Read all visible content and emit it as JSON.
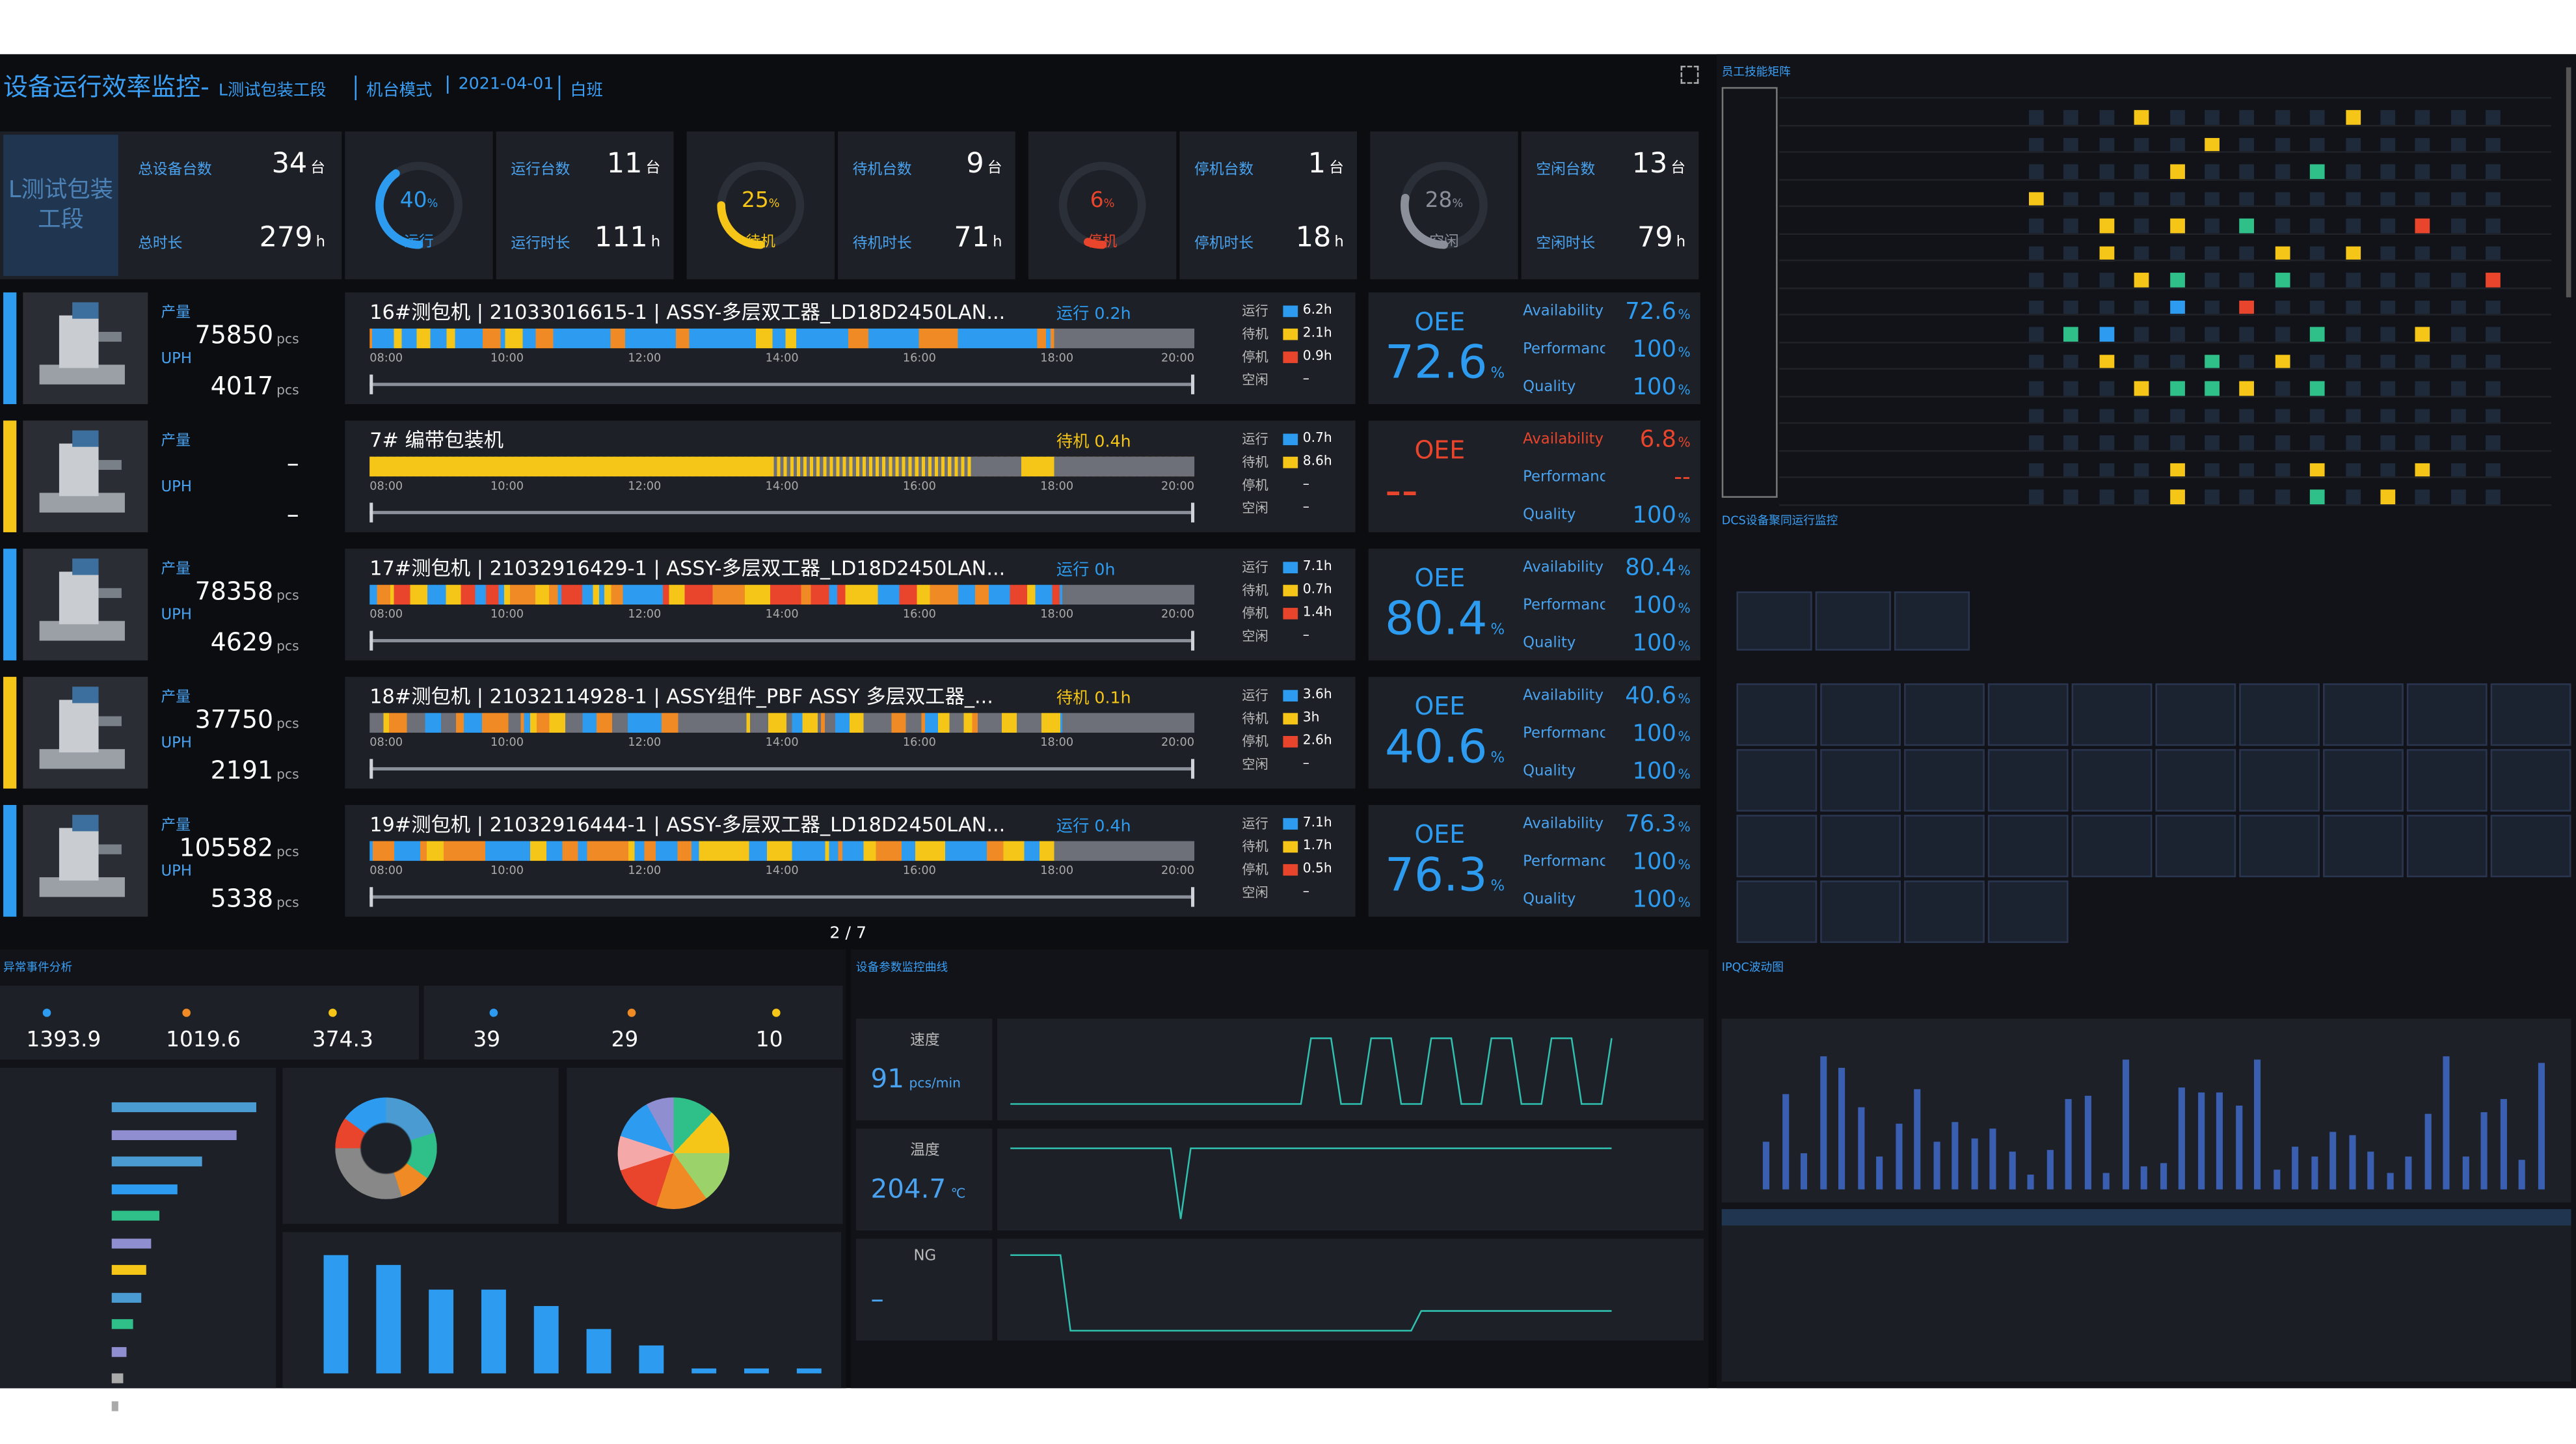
{
  "header": {
    "title": "设备运行效率监控-",
    "line": "L测试包装工段",
    "mode": "机台模式",
    "date": "2021-04-01",
    "shift": "白班"
  },
  "summary": {
    "line_label": "L测试包装工段",
    "total": [
      {
        "label": "总设备台数",
        "value": 34,
        "unit": "台"
      },
      {
        "label": "总时长",
        "value": 279,
        "unit": "h"
      }
    ],
    "percent_unit": "%",
    "states": [
      {
        "percent": 40,
        "name": "运行",
        "color": "#2d9cf0",
        "count_label": "运行台数",
        "count": 11,
        "count_unit": "台",
        "hours_label": "运行时长",
        "hours": 111,
        "hours_unit": "h"
      },
      {
        "percent": 25,
        "name": "待机",
        "color": "#f5c518",
        "count_label": "待机台数",
        "count": 9,
        "count_unit": "台",
        "hours_label": "待机时长",
        "hours": 71,
        "hours_unit": "h"
      },
      {
        "percent": 6,
        "name": "停机",
        "color": "#e8452c",
        "count_label": "停机台数",
        "count": 1,
        "count_unit": "台",
        "hours_label": "停机时长",
        "hours": 18,
        "hours_unit": "h"
      },
      {
        "percent": 28,
        "name": "空闲",
        "color": "#8a8f99",
        "count_label": "空闲台数",
        "count": 13,
        "count_unit": "台",
        "hours_label": "空闲时长",
        "hours": 79,
        "hours_unit": "h"
      }
    ]
  },
  "machines": {
    "labels": {
      "output": "产量",
      "uph": "UPH",
      "unit": "pcs",
      "oee": "OEE",
      "percent": "%",
      "metrics": [
        "Availability",
        "Performanc",
        "Quality"
      ],
      "states": [
        "运行",
        "待机",
        "停机",
        "空闲"
      ],
      "state_colors": [
        "#2d9cf0",
        "#f5c518",
        "#e8452c",
        null
      ]
    },
    "time_axis": [
      "08:00",
      "10:00",
      "12:00",
      "14:00",
      "16:00",
      "18:00",
      "20:00"
    ],
    "rows": [
      {
        "color": "#2d9cf0",
        "oee_color": "#2d9cf0",
        "output": 75850,
        "uph": 4017,
        "title": "16#测包机 | 21033016615-1 | ASSY-多层双工器_LD18D2450LAN...",
        "current": "运行 0.2h",
        "state_hours": [
          "6.2h",
          "2.1h",
          "0.9h",
          "–"
        ],
        "oee": 72.6,
        "metrics": [
          72.6,
          100,
          100
        ]
      },
      {
        "color": "#f5c518",
        "oee_color": "#e8452c",
        "output": "–",
        "uph": "–",
        "title": "7# 编带包装机",
        "current": "待机 0.4h",
        "state_hours": [
          "0.7h",
          "8.6h",
          "–",
          "–"
        ],
        "oee": "--",
        "metrics": [
          6.8,
          "--",
          100
        ]
      },
      {
        "color": "#2d9cf0",
        "oee_color": "#2d9cf0",
        "output": 78358,
        "uph": 4629,
        "title": "17#测包机 | 21032916429-1 | ASSY-多层双工器_LD18D2450LAN...",
        "current": "运行 0h",
        "state_hours": [
          "7.1h",
          "0.7h",
          "1.4h",
          "–"
        ],
        "oee": 80.4,
        "metrics": [
          80.4,
          100,
          100
        ]
      },
      {
        "color": "#f5c518",
        "oee_color": "#2d9cf0",
        "output": 37750,
        "uph": 2191,
        "title": "18#测包机 | 21032114928-1 | ASSY组件_PBF ASSY 多层双工器_...",
        "current": "待机 0.1h",
        "state_hours": [
          "3.6h",
          "3h",
          "2.6h",
          "–"
        ],
        "oee": 40.6,
        "metrics": [
          40.6,
          100,
          100
        ]
      },
      {
        "color": "#2d9cf0",
        "oee_color": "#2d9cf0",
        "output": 105582,
        "uph": 5338,
        "title": "19#测包机 | 21032916444-1 | ASSY-多层双工器_LD18D2450LAN...",
        "current": "运行 0.4h",
        "state_hours": [
          "7.1h",
          "1.7h",
          "0.5h",
          "–"
        ],
        "oee": 76.3,
        "metrics": [
          76.3,
          100,
          100
        ]
      }
    ],
    "pager": "2 / 7"
  },
  "panels": {
    "skills": {
      "title": "员工技能矩阵"
    },
    "dcs": {
      "title": "DCS设备聚同运行监控"
    },
    "events": {
      "title": "异常事件分析",
      "stats": [
        1393.9,
        1019.6,
        374.3,
        39,
        29,
        10
      ]
    },
    "params": {
      "title": "设备参数监控曲线",
      "items": [
        {
          "name": "速度",
          "value": 91,
          "unit": "pcs/min"
        },
        {
          "name": "温度",
          "value": 204.7,
          "unit": "℃"
        },
        {
          "name": "NG",
          "value": "–"
        }
      ]
    },
    "ipqc": {
      "title": "IPQC波动图"
    }
  }
}
